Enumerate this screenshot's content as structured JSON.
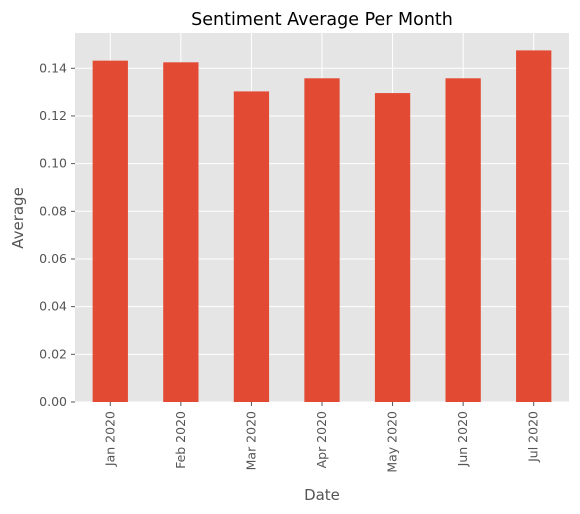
{
  "chart_data": {
    "type": "bar",
    "title": "Sentiment Average Per Month",
    "xlabel": "Date",
    "ylabel": "Average",
    "categories": [
      "Jan 2020",
      "Feb 2020",
      "Mar 2020",
      "Apr 2020",
      "May 2020",
      "Jun 2020",
      "Jul 2020"
    ],
    "values": [
      0.1432,
      0.1425,
      0.1303,
      0.1358,
      0.1296,
      0.1358,
      0.1475
    ],
    "ylim": [
      0,
      0.1548
    ],
    "yticks": [
      0.0,
      0.02,
      0.04,
      0.06,
      0.08,
      0.1,
      0.12,
      0.14
    ],
    "ytick_labels": [
      "0.00",
      "0.02",
      "0.04",
      "0.06",
      "0.08",
      "0.10",
      "0.12",
      "0.14"
    ],
    "grid": true,
    "bar_color": "#E24A33",
    "plot_background": "#E5E5E5",
    "grid_color": "#FFFFFF"
  }
}
